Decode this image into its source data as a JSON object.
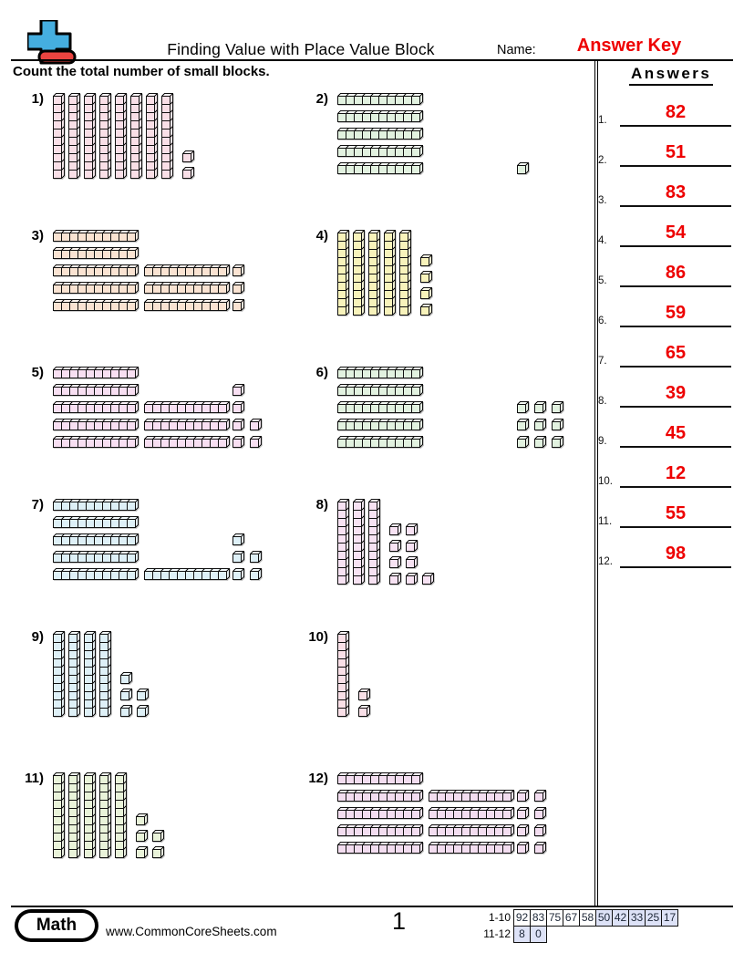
{
  "header": {
    "title": "Finding Value with Place Value Block",
    "name_label": "Name:",
    "name_value": "Answer Key",
    "instruction": "Count the total number of small blocks."
  },
  "answers_panel": {
    "title": "Answers",
    "items": [
      {
        "num": "1.",
        "value": "82"
      },
      {
        "num": "2.",
        "value": "51"
      },
      {
        "num": "3.",
        "value": "83"
      },
      {
        "num": "4.",
        "value": "54"
      },
      {
        "num": "5.",
        "value": "86"
      },
      {
        "num": "6.",
        "value": "59"
      },
      {
        "num": "7.",
        "value": "65"
      },
      {
        "num": "8.",
        "value": "39"
      },
      {
        "num": "9.",
        "value": "45"
      },
      {
        "num": "10.",
        "value": "12"
      },
      {
        "num": "11.",
        "value": "55"
      },
      {
        "num": "12.",
        "value": "98"
      }
    ]
  },
  "problems": [
    {
      "label": "1)",
      "type": "v",
      "color": "#f9dfe7",
      "rods": 8,
      "unit_rows": [
        1,
        1
      ]
    },
    {
      "label": "2)",
      "type": "h",
      "color": "#e2f2e0",
      "rows": [
        {
          "rod2": false,
          "units": 0
        },
        {
          "rod2": false,
          "units": 0
        },
        {
          "rod2": false,
          "units": 0
        },
        {
          "rod2": false,
          "units": 0
        },
        {
          "rod2": false,
          "units": 1
        }
      ]
    },
    {
      "label": "3)",
      "type": "h",
      "color": "#fae3d2",
      "rows": [
        {
          "rod2": false,
          "units": 0
        },
        {
          "rod2": false,
          "units": 0
        },
        {
          "rod2": true,
          "units": 1
        },
        {
          "rod2": true,
          "units": 1
        },
        {
          "rod2": true,
          "units": 1
        }
      ]
    },
    {
      "label": "4)",
      "type": "v",
      "color": "#f8f3bb",
      "rods": 5,
      "unit_rows": [
        1,
        1,
        1,
        1
      ]
    },
    {
      "label": "5)",
      "type": "h",
      "color": "#f8dff2",
      "rows": [
        {
          "rod2": false,
          "units": 0
        },
        {
          "rod2": false,
          "units": 1
        },
        {
          "rod2": true,
          "units": 1
        },
        {
          "rod2": true,
          "units": 2
        },
        {
          "rod2": true,
          "units": 2
        }
      ]
    },
    {
      "label": "6)",
      "type": "h",
      "color": "#e2f2e0",
      "rows": [
        {
          "rod2": false,
          "units": 0
        },
        {
          "rod2": false,
          "units": 0
        },
        {
          "rod2": false,
          "units": 3
        },
        {
          "rod2": false,
          "units": 3
        },
        {
          "rod2": false,
          "units": 3
        }
      ]
    },
    {
      "label": "7)",
      "type": "h",
      "color": "#def0f7",
      "rows": [
        {
          "rod2": false,
          "units": 0
        },
        {
          "rod2": false,
          "units": 0
        },
        {
          "rod2": false,
          "units": 1
        },
        {
          "rod2": false,
          "units": 2
        },
        {
          "rod2": true,
          "units": 2
        }
      ]
    },
    {
      "label": "8)",
      "type": "v",
      "color": "#f7e2f3",
      "rods": 3,
      "unit_rows": [
        2,
        2,
        2,
        3
      ]
    },
    {
      "label": "9)",
      "type": "v",
      "color": "#def0f7",
      "rods": 4,
      "unit_rows": [
        1,
        2,
        2
      ]
    },
    {
      "label": "10)",
      "type": "v",
      "color": "#f9dfe7",
      "rods": 1,
      "unit_rows": [
        1,
        1
      ]
    },
    {
      "label": "11)",
      "type": "v",
      "color": "#e9f3d9",
      "rods": 5,
      "unit_rows": [
        1,
        2,
        2
      ]
    },
    {
      "label": "12)",
      "type": "h",
      "color": "#f3ddf0",
      "rows": [
        {
          "rod2": false,
          "units": 0
        },
        {
          "rod2": true,
          "units": 2
        },
        {
          "rod2": true,
          "units": 2
        },
        {
          "rod2": true,
          "units": 2
        },
        {
          "rod2": true,
          "units": 2
        }
      ]
    }
  ],
  "colors": {
    "answer_red": "#ee0000",
    "score_highlight": "#dde2f7",
    "logo_blue": "#45aee0",
    "logo_red": "#ea4440"
  },
  "footer": {
    "subject": "Math",
    "website": "www.CommonCoreSheets.com",
    "page_number": "1",
    "score_rows": [
      {
        "label": "1-10",
        "cells": [
          {
            "v": "92",
            "hl": false
          },
          {
            "v": "83",
            "hl": false
          },
          {
            "v": "75",
            "hl": false
          },
          {
            "v": "67",
            "hl": false
          },
          {
            "v": "58",
            "hl": false
          },
          {
            "v": "50",
            "hl": true
          },
          {
            "v": "42",
            "hl": true
          },
          {
            "v": "33",
            "hl": true
          },
          {
            "v": "25",
            "hl": true
          },
          {
            "v": "17",
            "hl": true
          }
        ]
      },
      {
        "label": "11-12",
        "cells": [
          {
            "v": "8",
            "hl": true
          },
          {
            "v": "0",
            "hl": true
          }
        ]
      }
    ]
  }
}
